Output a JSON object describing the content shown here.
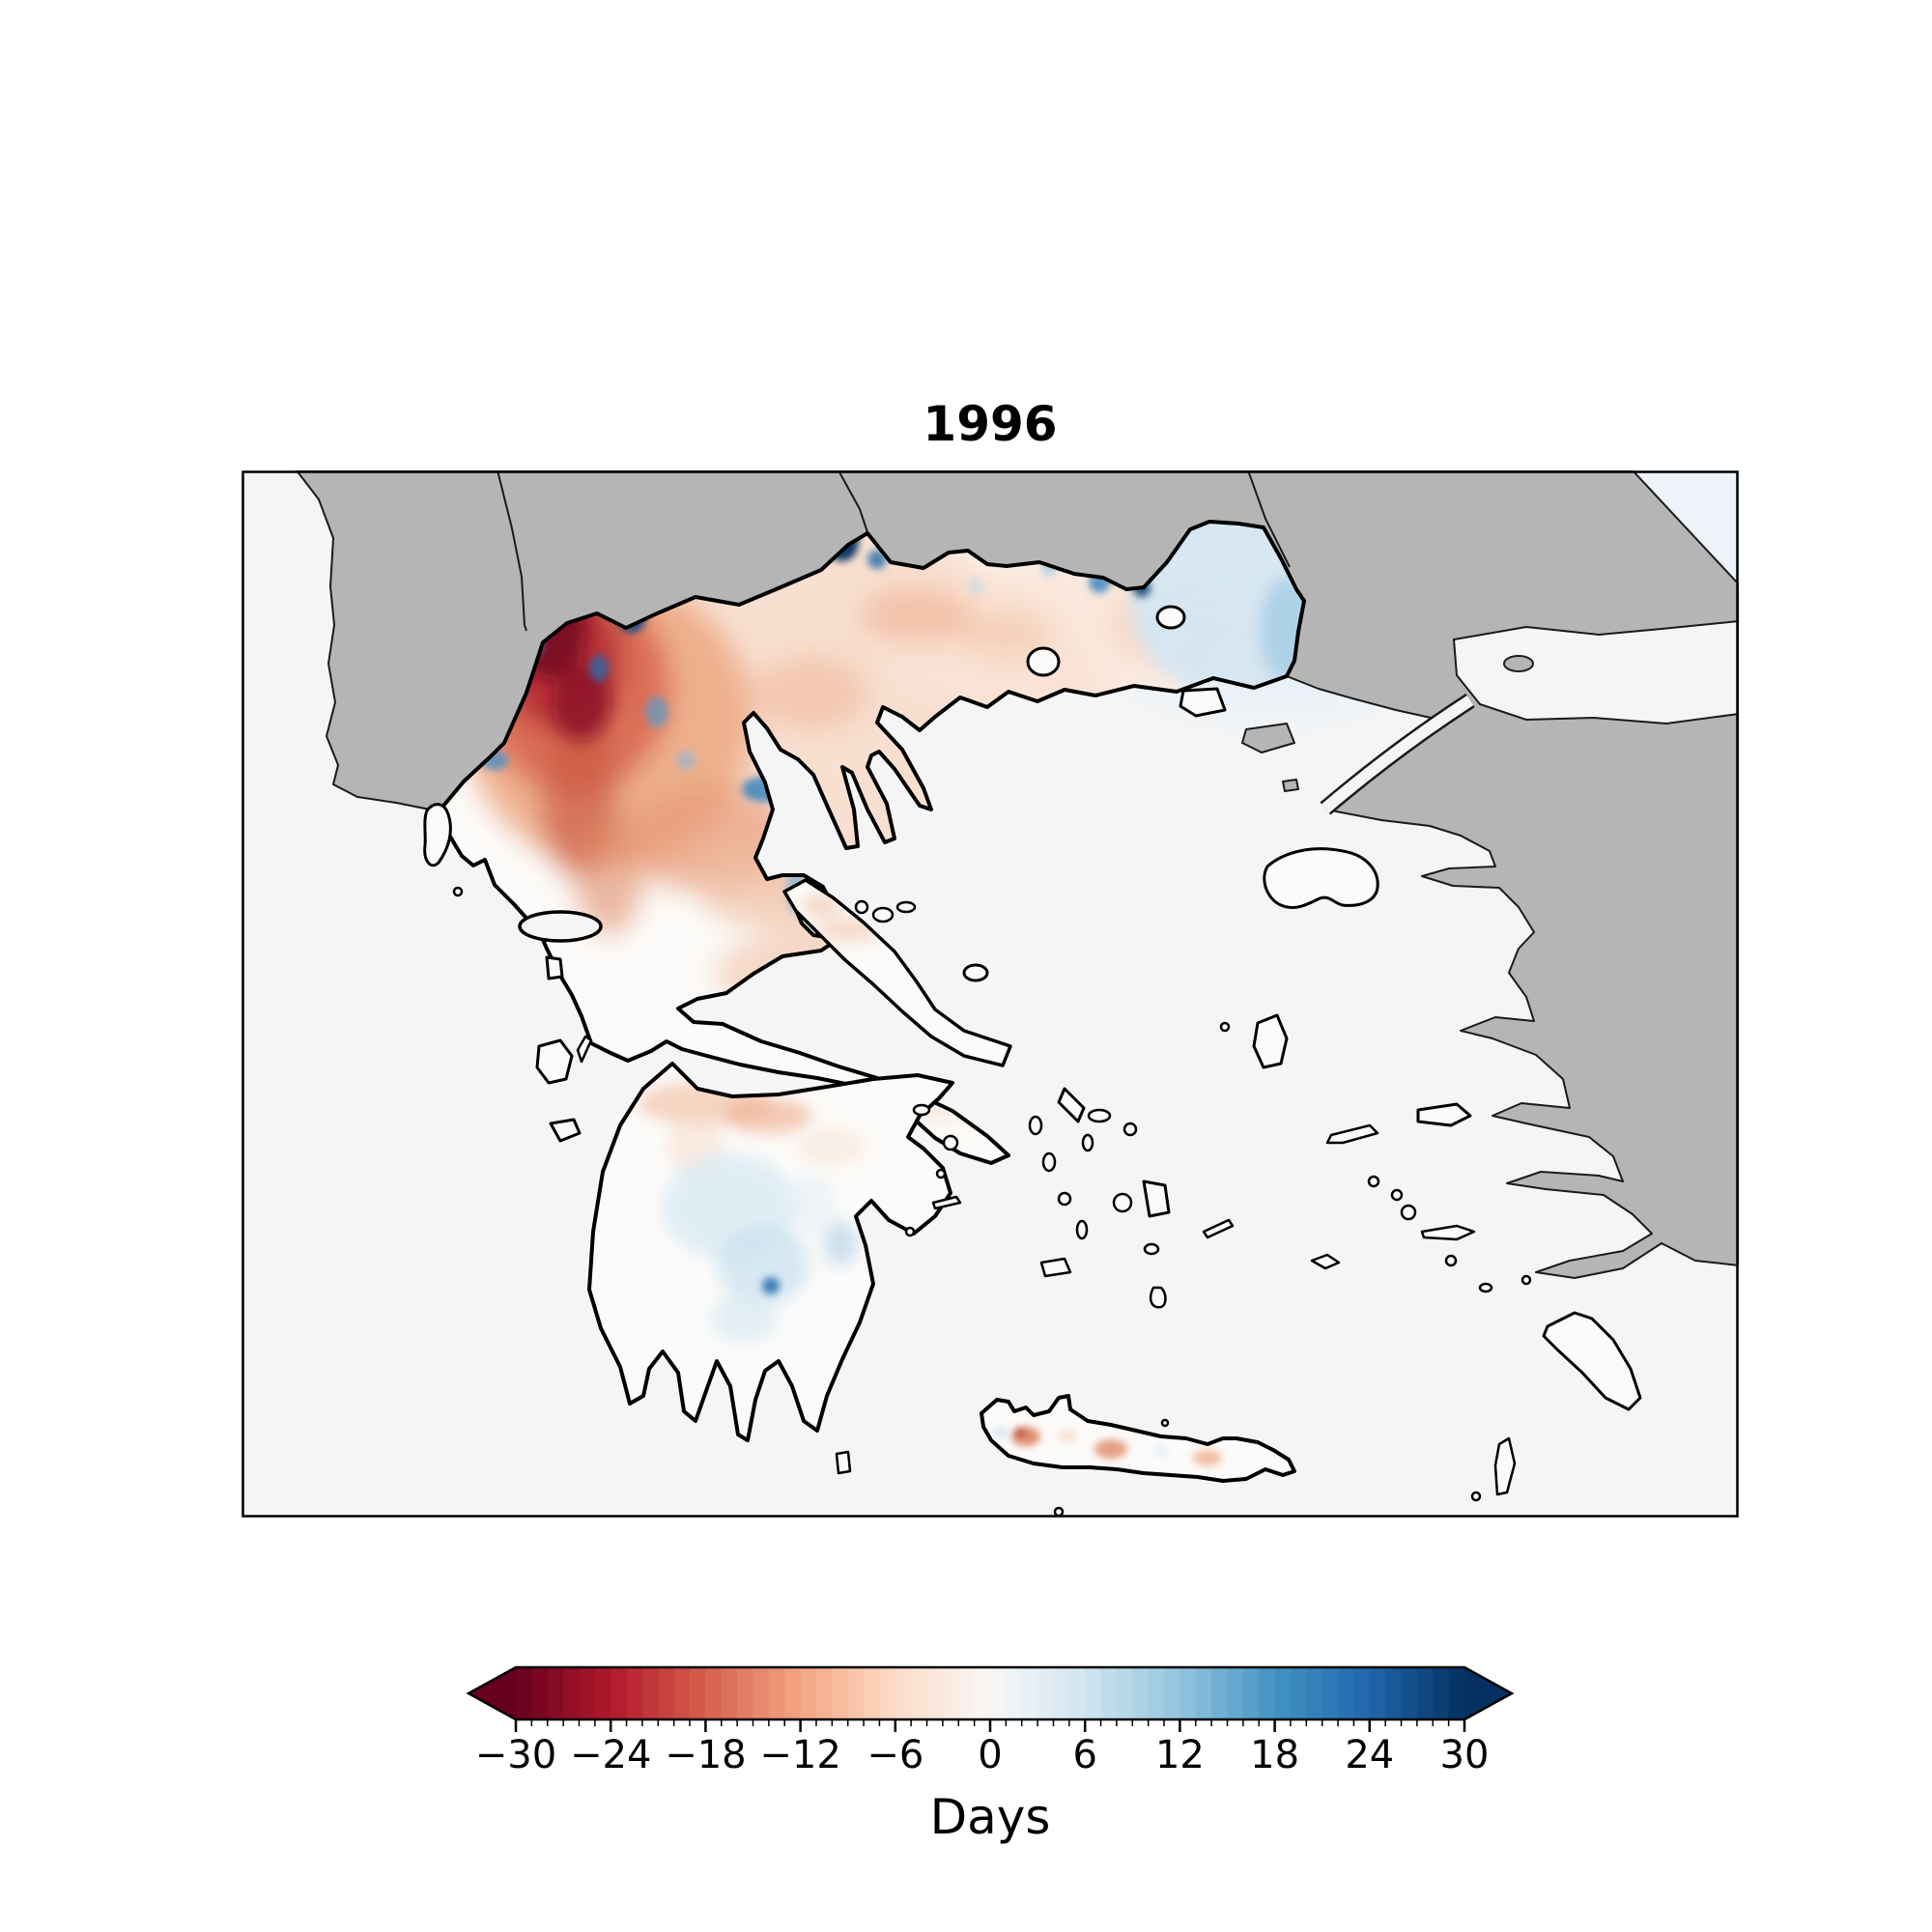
{
  "title": "1996",
  "colorbar": {
    "label": "Days",
    "ticks": [
      -30,
      -24,
      -18,
      -12,
      -6,
      0,
      6,
      12,
      18,
      24,
      30
    ],
    "minor_tick_step": 1,
    "vmin": -30,
    "vmax": 30,
    "n_bands": 60,
    "extend": "both",
    "colormap": "RdBu",
    "colors": [
      "#67001f",
      "#b2182b",
      "#d6604d",
      "#f4a582",
      "#fddbc7",
      "#f7f7f7",
      "#d1e5f0",
      "#92c5de",
      "#4393c3",
      "#2166ac",
      "#053061"
    ]
  },
  "map": {
    "sea_color": "#f5f5f5",
    "outside_land_color": "#b5b5b5",
    "greek_land_color": "#fcfbf9",
    "coastline_color": "#000000",
    "black_sea_tint": "#edf3f8",
    "regions": [
      {
        "region": "Northwest Greece (Epirus / Pindus)",
        "anomaly_days": "-18 to -30"
      },
      {
        "region": "Western Macedonia",
        "anomaly_days": "-10 to -20"
      },
      {
        "region": "Central Macedonia lowlands",
        "anomaly_days": "-2 to -8"
      },
      {
        "region": "Northern border pockets",
        "anomaly_days": "+10 to +30"
      },
      {
        "region": "Eastern Macedonia and Thrace (Evros)",
        "anomaly_days": "+2 to +8"
      },
      {
        "region": "Thessaly",
        "anomaly_days": "-4 to -10"
      },
      {
        "region": "Central Greece and Attica",
        "anomaly_days": "-2 to -6"
      },
      {
        "region": "Peloponnese",
        "anomaly_days": "-3 to +4"
      },
      {
        "region": "Aegean islands",
        "anomaly_days": "0 to -2"
      },
      {
        "region": "Crete",
        "anomaly_days": "0 to -6"
      }
    ]
  }
}
